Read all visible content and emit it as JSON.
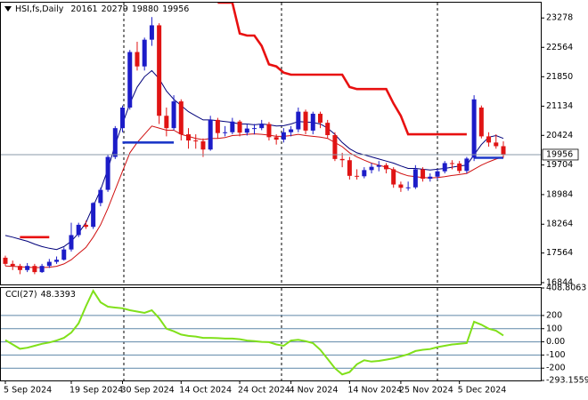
{
  "chart_data": [
    {
      "type": "candlestick",
      "title": "HSI,fs,Daily",
      "categories": [
        "5 Sep 2024",
        null,
        null,
        null,
        null,
        null,
        null,
        null,
        null,
        "19 Sep 2024",
        null,
        null,
        null,
        null,
        null,
        null,
        "30 Sep 2024",
        null,
        null,
        null,
        null,
        null,
        null,
        null,
        "14 Oct 2024",
        null,
        null,
        null,
        null,
        null,
        null,
        null,
        "24 Oct 2024",
        null,
        null,
        null,
        null,
        null,
        null,
        "4 Nov 2024",
        null,
        null,
        null,
        null,
        null,
        null,
        null,
        "14 Nov 2024",
        null,
        null,
        null,
        null,
        null,
        null,
        "25 Nov 2024",
        null,
        null,
        null,
        null,
        null,
        null,
        null,
        "5 Dec 2024",
        null,
        null,
        null,
        null,
        null,
        null
      ],
      "open": [
        17450,
        17300,
        17250,
        17150,
        17250,
        17100,
        17250,
        17350,
        17400,
        17650,
        18000,
        18250,
        18200,
        18780,
        19100,
        19900,
        20600,
        21100,
        22450,
        22100,
        22750,
        23100,
        20900,
        20600,
        21250,
        20450,
        20300,
        20280,
        20080,
        20800,
        20480,
        20500,
        20760,
        20490,
        20590,
        20600,
        20700,
        20380,
        20320,
        20500,
        20570,
        21000,
        20540,
        20950,
        20730,
        20430,
        19850,
        19820,
        19440,
        19430,
        19580,
        19660,
        19700,
        19600,
        19230,
        19150,
        19160,
        19600,
        19370,
        19420,
        19550,
        19750,
        19740,
        19560,
        19880,
        21100,
        20400,
        20250,
        20161
      ],
      "high": [
        17500,
        17380,
        17300,
        17320,
        17300,
        17300,
        17420,
        17480,
        17700,
        18300,
        18300,
        18350,
        18800,
        19150,
        19950,
        20650,
        21150,
        22500,
        22700,
        22800,
        23300,
        23150,
        21100,
        21400,
        21300,
        20600,
        20450,
        20350,
        20900,
        20850,
        20650,
        20850,
        20800,
        20700,
        20700,
        20800,
        20750,
        20450,
        20600,
        20650,
        21100,
        21050,
        21000,
        21000,
        20800,
        20500,
        20000,
        19900,
        19600,
        19650,
        19750,
        19800,
        19750,
        19650,
        19300,
        19300,
        19700,
        19650,
        19500,
        19600,
        19800,
        19820,
        19800,
        19900,
        21400,
        21150,
        20500,
        20450,
        20279
      ],
      "low": [
        17250,
        17150,
        17050,
        17100,
        17050,
        17080,
        17200,
        17300,
        17380,
        17600,
        17950,
        18150,
        18150,
        18700,
        19050,
        19850,
        20500,
        21050,
        22000,
        22000,
        22600,
        20700,
        20400,
        20550,
        20300,
        20100,
        20100,
        19900,
        20050,
        20350,
        20400,
        20450,
        20400,
        20420,
        20450,
        20550,
        20300,
        20200,
        20250,
        20400,
        20500,
        20450,
        20450,
        20600,
        20350,
        19800,
        19650,
        19350,
        19350,
        19380,
        19500,
        19550,
        19500,
        19150,
        19050,
        19080,
        19120,
        19300,
        19300,
        19350,
        19500,
        19600,
        19500,
        19500,
        19800,
        20350,
        20150,
        20100,
        19880
      ],
      "close": [
        17300,
        17250,
        17150,
        17250,
        17100,
        17250,
        17350,
        17400,
        17650,
        18000,
        18250,
        18200,
        18780,
        19100,
        19900,
        20600,
        21100,
        22450,
        22100,
        22750,
        23100,
        20900,
        20600,
        21250,
        20450,
        20300,
        20280,
        20080,
        20800,
        20480,
        20500,
        20760,
        20490,
        20590,
        20600,
        20700,
        20380,
        20320,
        20500,
        20570,
        21000,
        20540,
        20950,
        20730,
        20430,
        19850,
        19820,
        19440,
        19430,
        19580,
        19660,
        19700,
        19600,
        19230,
        19150,
        19160,
        19600,
        19370,
        19420,
        19550,
        19750,
        19740,
        19560,
        19860,
        21300,
        20400,
        20250,
        20161,
        19956
      ],
      "up_color": "#1c1cc8",
      "down_color": "#e01414",
      "series": [
        {
          "color": "#00007a",
          "values": [
            17990,
            17950,
            17900,
            17850,
            17780,
            17720,
            17680,
            17650,
            17720,
            17850,
            18050,
            18300,
            18700,
            19100,
            19600,
            20200,
            20700,
            21200,
            21600,
            21850,
            22000,
            21800,
            21500,
            21300,
            21150,
            21000,
            20900,
            20800,
            20800,
            20780,
            20760,
            20740,
            20700,
            20700,
            20680,
            20700,
            20680,
            20650,
            20660,
            20700,
            20760,
            20750,
            20740,
            20700,
            20600,
            20450,
            20250,
            20100,
            20000,
            19950,
            19900,
            19850,
            19800,
            19750,
            19680,
            19620,
            19620,
            19600,
            19580,
            19600,
            19620,
            19650,
            19680,
            19700,
            19950,
            20200,
            20380,
            20420,
            20350
          ]
        },
        {
          "color": "#d01010",
          "values": [
            17250,
            17240,
            17230,
            17220,
            17210,
            17210,
            17220,
            17240,
            17300,
            17400,
            17550,
            17700,
            17950,
            18250,
            18650,
            19100,
            19550,
            20000,
            20250,
            20450,
            20650,
            20600,
            20550,
            20550,
            20450,
            20400,
            20350,
            20320,
            20350,
            20350,
            20370,
            20420,
            20430,
            20450,
            20460,
            20450,
            20430,
            20400,
            20400,
            20420,
            20450,
            20420,
            20400,
            20380,
            20350,
            20250,
            20150,
            20000,
            19900,
            19820,
            19750,
            19700,
            19650,
            19580,
            19500,
            19440,
            19420,
            19400,
            19390,
            19400,
            19420,
            19450,
            19470,
            19500,
            19600,
            19700,
            19780,
            19850,
            19900
          ]
        },
        {
          "color": "#e81010",
          "bold": true,
          "values": [
            null,
            null,
            17950,
            17950,
            17950,
            17950,
            17950,
            null,
            null,
            null,
            null,
            null,
            null,
            null,
            null,
            null,
            null,
            null,
            null,
            null,
            null,
            null,
            null,
            null,
            null,
            null,
            null,
            null,
            null,
            23650,
            23650,
            23650,
            22900,
            22850,
            22850,
            22600,
            22150,
            22100,
            21950,
            21900,
            21900,
            21900,
            21900,
            21900,
            21900,
            21900,
            21900,
            21600,
            21550,
            21550,
            21550,
            21550,
            21550,
            21200,
            20900,
            20450,
            20450,
            20450,
            20450,
            20450,
            20450,
            20450,
            20450,
            20450,
            null,
            null,
            null,
            null,
            null
          ]
        },
        {
          "color": "#1c38c8",
          "bold": true,
          "values": [
            null,
            null,
            null,
            null,
            null,
            null,
            null,
            null,
            null,
            null,
            null,
            null,
            null,
            null,
            null,
            null,
            20250,
            20250,
            20250,
            20250,
            20250,
            20250,
            20250,
            20250,
            null,
            null,
            null,
            null,
            null,
            null,
            null,
            null,
            null,
            null,
            null,
            null,
            null,
            null,
            null,
            null,
            null,
            null,
            null,
            null,
            null,
            null,
            null,
            null,
            null,
            null,
            null,
            null,
            null,
            null,
            null,
            null,
            null,
            null,
            null,
            null,
            null,
            null,
            null,
            null,
            19880,
            19880,
            19880,
            19880,
            19880
          ]
        }
      ],
      "price_line": true,
      "ylim": [
        16800,
        23650
      ],
      "yticks": [
        23278,
        22564,
        21850,
        21134,
        20424,
        19704,
        18984,
        18264,
        17564,
        16844
      ]
    },
    {
      "type": "line",
      "title": "CCI(27)",
      "color": "#80e01a",
      "values": [
        13,
        -20,
        -53,
        -45,
        -30,
        -15,
        -5,
        10,
        30,
        70,
        140,
        270,
        387,
        300,
        267,
        260,
        255,
        240,
        230,
        220,
        240,
        180,
        100,
        80,
        55,
        45,
        40,
        30,
        30,
        28,
        25,
        25,
        20,
        10,
        5,
        0,
        -2,
        -20,
        -30,
        10,
        15,
        5,
        -10,
        -60,
        -130,
        -200,
        -247,
        -230,
        -170,
        -140,
        -150,
        -145,
        -135,
        -125,
        -110,
        -95,
        -70,
        -60,
        -55,
        -40,
        -30,
        -20,
        -15,
        -10,
        153,
        130,
        100,
        85,
        48.3393
      ],
      "ylim": [
        -293.1559,
        408.8063
      ],
      "yticks": [
        408.8063,
        200,
        100,
        {
          "value": 0,
          "label": "0.00"
        },
        -100,
        -200,
        -293.1559
      ]
    }
  ]
}
